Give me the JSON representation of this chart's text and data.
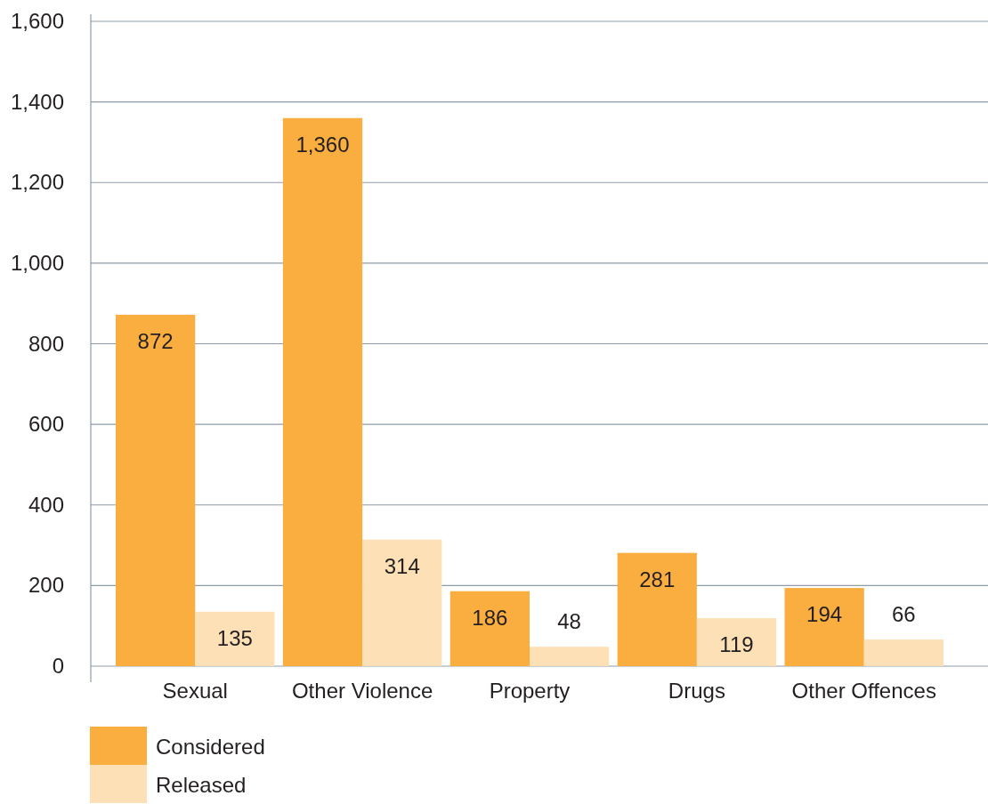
{
  "chart_data": {
    "type": "bar",
    "categories": [
      "Sexual",
      "Other Violence",
      "Property",
      "Drugs",
      "Other Offences"
    ],
    "series": [
      {
        "name": "Considered",
        "color": "#f9ae3f",
        "values": [
          872,
          1360,
          186,
          281,
          194
        ],
        "value_labels": [
          "872",
          "1,360",
          "186",
          "281",
          "194"
        ]
      },
      {
        "name": "Released",
        "color": "#fde0b5",
        "values": [
          135,
          314,
          48,
          119,
          66
        ],
        "value_labels": [
          "135",
          "314",
          "48",
          "119",
          "66"
        ]
      }
    ],
    "ylim": [
      0,
      1600
    ],
    "yticks": [
      0,
      {
        "value": 200,
        "label": "200"
      },
      {
        "value": 400,
        "label": "400"
      },
      {
        "value": 600,
        "label": "600"
      },
      {
        "value": 800,
        "label": "800"
      },
      {
        "value": 1000,
        "label": "1,000"
      },
      {
        "value": 1200,
        "label": "1,200"
      },
      {
        "value": 1400,
        "label": "1,400"
      },
      {
        "value": 1600,
        "label": "1,600"
      }
    ],
    "grid": "y",
    "legend": "bottom left"
  }
}
